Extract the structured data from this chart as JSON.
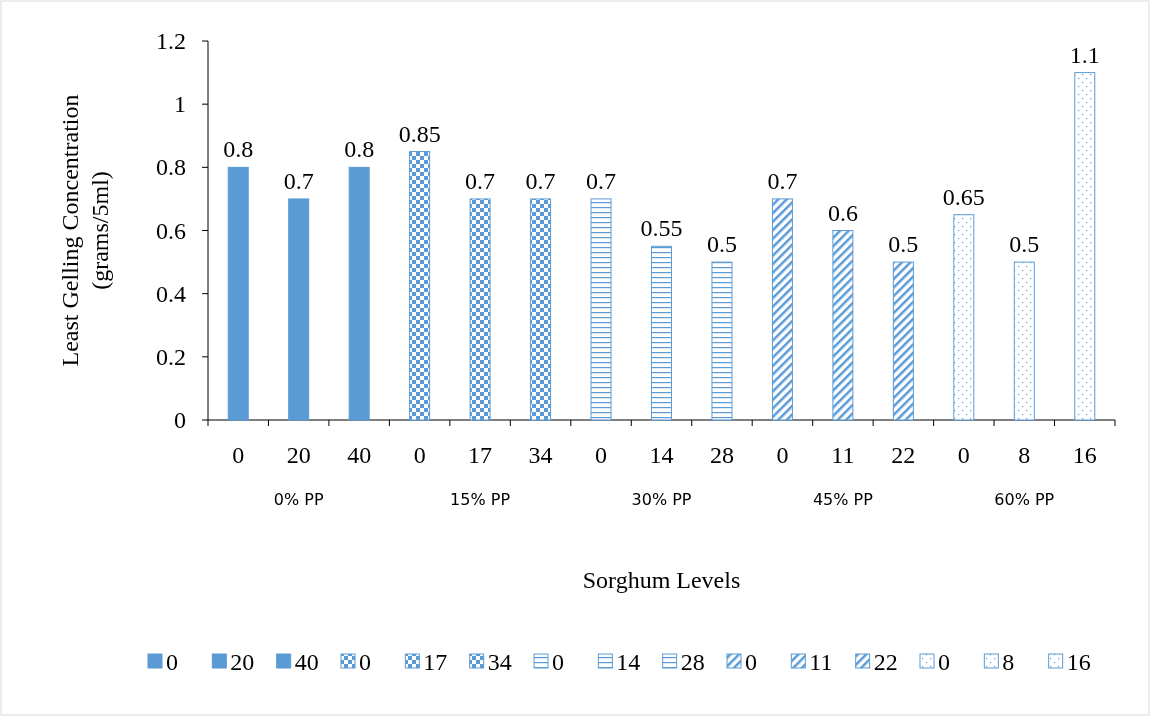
{
  "chart_data": {
    "type": "bar",
    "xlabel": "Sorghum Levels",
    "ylabel": "Least Gelling Concentration (grams/5ml)",
    "categories": [
      "0",
      "20",
      "40",
      "0",
      "17",
      "34",
      "0",
      "14",
      "28",
      "0",
      "11",
      "22",
      "0",
      "8",
      "16"
    ],
    "series": [
      {
        "name": "0",
        "color": "#5b9bd5",
        "values": [
          0.8,
          null,
          null,
          null,
          null,
          null,
          null,
          null,
          null,
          null,
          null,
          null,
          null,
          null,
          null
        ]
      },
      {
        "name": "20",
        "color": "#5b9bd5",
        "values": [
          null,
          0.7,
          null,
          null,
          null,
          null,
          null,
          null,
          null,
          null,
          null,
          null,
          null,
          null,
          null
        ]
      },
      {
        "name": "40",
        "color": "#5b9bd5",
        "values": [
          null,
          null,
          0.8,
          null,
          null,
          null,
          null,
          null,
          null,
          null,
          null,
          null,
          null,
          null,
          null
        ]
      },
      {
        "name": "0",
        "color": "#5b9bd5",
        "values": [
          null,
          null,
          null,
          0.85,
          null,
          null,
          null,
          null,
          null,
          null,
          null,
          null,
          null,
          null,
          null
        ]
      },
      {
        "name": "17",
        "color": "#5b9bd5",
        "values": [
          null,
          null,
          null,
          null,
          0.7,
          null,
          null,
          null,
          null,
          null,
          null,
          null,
          null,
          null,
          null
        ]
      },
      {
        "name": "34",
        "color": "#5b9bd5",
        "values": [
          null,
          null,
          null,
          null,
          null,
          0.7,
          null,
          null,
          null,
          null,
          null,
          null,
          null,
          null,
          null
        ]
      },
      {
        "name": "0",
        "color": "#5b9bd5",
        "values": [
          null,
          null,
          null,
          null,
          null,
          null,
          0.7,
          null,
          null,
          null,
          null,
          null,
          null,
          null,
          null
        ]
      },
      {
        "name": "14",
        "color": "#5b9bd5",
        "values": [
          null,
          null,
          null,
          null,
          null,
          null,
          null,
          0.55,
          null,
          null,
          null,
          null,
          null,
          null,
          null
        ]
      },
      {
        "name": "28",
        "color": "#5b9bd5",
        "values": [
          null,
          null,
          null,
          null,
          null,
          null,
          null,
          null,
          0.5,
          null,
          null,
          null,
          null,
          null,
          null
        ]
      },
      {
        "name": "0",
        "color": "#5b9bd5",
        "values": [
          null,
          null,
          null,
          null,
          null,
          null,
          null,
          null,
          null,
          0.7,
          null,
          null,
          null,
          null,
          null
        ]
      },
      {
        "name": "11",
        "color": "#5b9bd5",
        "values": [
          null,
          null,
          null,
          null,
          null,
          null,
          null,
          null,
          null,
          null,
          0.6,
          null,
          null,
          null,
          null
        ]
      },
      {
        "name": "22",
        "color": "#5b9bd5",
        "values": [
          null,
          null,
          null,
          null,
          null,
          null,
          null,
          null,
          null,
          null,
          null,
          0.5,
          null,
          null,
          null
        ]
      },
      {
        "name": "0",
        "color": "#5b9bd5",
        "values": [
          null,
          null,
          null,
          null,
          null,
          null,
          null,
          null,
          null,
          null,
          null,
          null,
          0.65,
          null,
          null
        ]
      },
      {
        "name": "8",
        "color": "#5b9bd5",
        "values": [
          null,
          null,
          null,
          null,
          null,
          null,
          null,
          null,
          null,
          null,
          null,
          null,
          null,
          0.5,
          null
        ]
      },
      {
        "name": "16",
        "color": "#5b9bd5",
        "values": [
          null,
          null,
          null,
          null,
          null,
          null,
          null,
          null,
          null,
          null,
          null,
          null,
          null,
          null,
          1.1
        ]
      }
    ],
    "annotations": [
      "0% PP",
      "15% PP",
      "30% PP",
      "45% PP",
      "60% PP"
    ],
    "ylim": [
      0,
      1.2
    ],
    "yticks": [
      0,
      0.2,
      0.4,
      0.6,
      0.8,
      1,
      1.2
    ],
    "data_labels": true,
    "legend": "bottom",
    "grid": false
  }
}
